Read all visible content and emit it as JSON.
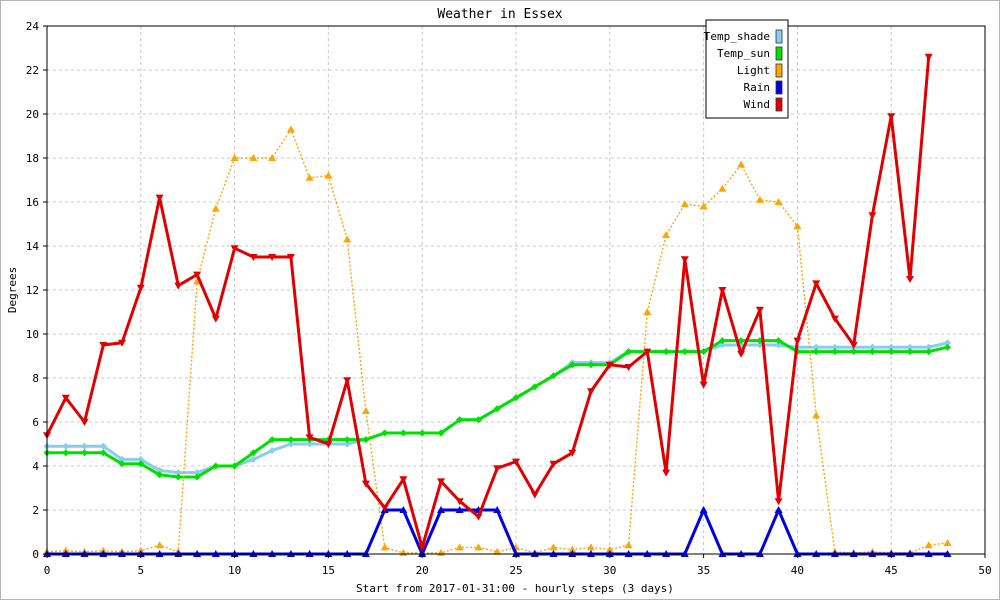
{
  "colors": {
    "Temp_shade": "#87ceeb",
    "Temp_sun": "#00e000",
    "Light": "#ffa500",
    "Rain": "#0000e0",
    "Wind": "#e00000",
    "grid": "#c8c8c8"
  },
  "chart_data": {
    "type": "line",
    "title": "Weather in Essex",
    "xlabel": "Start from 2017-01-31:00 - hourly steps (3 days)",
    "ylabel": "Degrees",
    "xlim": [
      0,
      50
    ],
    "ylim": [
      0,
      24
    ],
    "xticks": [
      0,
      5,
      10,
      15,
      20,
      25,
      30,
      35,
      40,
      45,
      50
    ],
    "yticks": [
      0,
      2,
      4,
      6,
      8,
      10,
      12,
      14,
      16,
      18,
      20,
      22,
      24
    ],
    "grid": true,
    "legend_position": "top-right",
    "x": [
      0,
      1,
      2,
      3,
      4,
      5,
      6,
      7,
      8,
      9,
      10,
      11,
      12,
      13,
      14,
      15,
      16,
      17,
      18,
      19,
      20,
      21,
      22,
      23,
      24,
      25,
      26,
      27,
      28,
      29,
      30,
      31,
      32,
      33,
      34,
      35,
      36,
      37,
      38,
      39,
      40,
      41,
      42,
      43,
      44,
      45,
      46,
      47,
      48
    ],
    "series": [
      {
        "name": "Temp_shade",
        "color": "#87ceeb",
        "marker": "diamond",
        "style": "solid",
        "values": [
          4.9,
          4.9,
          4.9,
          4.9,
          4.3,
          4.3,
          3.8,
          3.7,
          3.7,
          4.0,
          4.0,
          4.3,
          4.7,
          5.0,
          5.0,
          5.0,
          5.0,
          5.2,
          5.5,
          5.5,
          5.5,
          5.5,
          6.1,
          6.1,
          6.6,
          7.1,
          7.6,
          8.1,
          8.7,
          8.7,
          8.7,
          9.2,
          9.2,
          9.2,
          9.2,
          9.2,
          9.5,
          9.5,
          9.5,
          9.5,
          9.4,
          9.4,
          9.4,
          9.4,
          9.4,
          9.4,
          9.4,
          9.4,
          9.6
        ]
      },
      {
        "name": "Temp_sun",
        "color": "#00e000",
        "marker": "diamond",
        "style": "solid",
        "values": [
          4.6,
          4.6,
          4.6,
          4.6,
          4.1,
          4.1,
          3.6,
          3.5,
          3.5,
          4.0,
          4.0,
          4.6,
          5.2,
          5.2,
          5.2,
          5.2,
          5.2,
          5.2,
          5.5,
          5.5,
          5.5,
          5.5,
          6.1,
          6.1,
          6.6,
          7.1,
          7.6,
          8.1,
          8.6,
          8.6,
          8.6,
          9.2,
          9.2,
          9.2,
          9.2,
          9.2,
          9.7,
          9.7,
          9.7,
          9.7,
          9.2,
          9.2,
          9.2,
          9.2,
          9.2,
          9.2,
          9.2,
          9.2,
          9.4
        ]
      },
      {
        "name": "Light",
        "color": "#ffa500",
        "marker": "triangle-up",
        "style": "dotted",
        "values": [
          0.1,
          0.15,
          0.1,
          0.15,
          0.1,
          0.15,
          0.4,
          0.1,
          12.4,
          15.7,
          18.0,
          18.0,
          18.0,
          19.3,
          17.1,
          17.2,
          14.3,
          6.5,
          0.3,
          0.05,
          0.05,
          0.05,
          0.3,
          0.3,
          0.1,
          0.3,
          0.05,
          0.3,
          0.2,
          0.3,
          0.2,
          0.4,
          11.0,
          14.5,
          15.9,
          15.8,
          16.6,
          17.7,
          16.1,
          16.0,
          14.9,
          6.3,
          0.1,
          0.05,
          0.1,
          0.05,
          0.05,
          0.4,
          0.5
        ]
      },
      {
        "name": "Rain",
        "color": "#0000e0",
        "marker": "triangle-up",
        "style": "solid",
        "values": [
          0,
          0,
          0,
          0,
          0,
          0,
          0,
          0,
          0,
          0,
          0,
          0,
          0,
          0,
          0,
          0,
          0,
          0,
          2,
          2,
          0,
          2,
          2,
          2,
          2,
          0,
          0,
          0,
          0,
          0,
          0,
          0,
          0,
          0,
          0,
          2,
          0,
          0,
          0,
          2,
          0,
          0,
          0,
          0,
          0,
          0,
          0,
          0,
          0
        ]
      },
      {
        "name": "Wind",
        "color": "#e00000",
        "marker": "triangle-down",
        "style": "solid",
        "values": [
          5.4,
          7.1,
          6.0,
          9.5,
          9.6,
          12.1,
          16.2,
          12.2,
          12.7,
          10.7,
          13.9,
          13.5,
          13.5,
          13.5,
          5.3,
          5.0,
          7.9,
          3.2,
          2.1,
          3.4,
          0.3,
          3.3,
          2.4,
          1.7,
          3.9,
          4.2,
          2.7,
          4.1,
          4.6,
          7.4,
          8.6,
          8.5,
          9.2,
          3.7,
          13.4,
          7.7,
          12.0,
          9.1,
          11.1,
          2.4,
          9.7,
          12.3,
          10.7,
          9.5,
          15.4,
          19.9,
          12.5,
          22.6,
          null
        ]
      }
    ]
  }
}
